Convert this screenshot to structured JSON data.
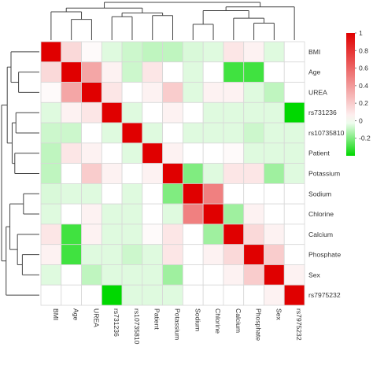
{
  "chart_data": {
    "type": "heatmap",
    "title": "",
    "variables": [
      "BMI",
      "Age",
      "UREA",
      "rs731236",
      "rs10735810",
      "Patient",
      "Potassium",
      "Sodium",
      "Chlorine",
      "Calcium",
      "Phosphate",
      "Sex",
      "rs7975232"
    ],
    "matrix": [
      [
        1.0,
        0.15,
        0.02,
        -0.05,
        -0.08,
        -0.1,
        -0.1,
        -0.06,
        -0.05,
        0.1,
        0.05,
        -0.05,
        0.0
      ],
      [
        0.15,
        1.0,
        0.35,
        0.05,
        -0.08,
        0.1,
        0.0,
        -0.05,
        0.0,
        -0.3,
        -0.3,
        0.0,
        0.0
      ],
      [
        0.02,
        0.35,
        1.0,
        0.1,
        0.0,
        0.05,
        0.2,
        -0.05,
        0.05,
        0.05,
        -0.05,
        -0.1,
        0.0
      ],
      [
        -0.05,
        0.05,
        0.1,
        1.0,
        -0.05,
        0.0,
        0.05,
        0.0,
        -0.05,
        -0.05,
        -0.05,
        -0.05,
        -0.4
      ],
      [
        -0.08,
        -0.08,
        0.0,
        -0.05,
        1.0,
        -0.05,
        0.0,
        -0.05,
        -0.05,
        -0.05,
        -0.08,
        -0.05,
        -0.05
      ],
      [
        -0.1,
        0.1,
        0.05,
        0.0,
        -0.05,
        1.0,
        0.05,
        0.0,
        0.0,
        0.02,
        -0.05,
        -0.05,
        -0.05
      ],
      [
        -0.1,
        0.0,
        0.2,
        0.05,
        0.0,
        0.05,
        1.0,
        -0.2,
        -0.05,
        0.1,
        0.1,
        -0.15,
        -0.05
      ],
      [
        -0.06,
        -0.05,
        -0.05,
        0.0,
        -0.05,
        0.0,
        -0.2,
        1.0,
        0.5,
        0.0,
        0.0,
        0.0,
        0.0
      ],
      [
        -0.05,
        0.0,
        0.05,
        -0.05,
        -0.05,
        0.0,
        -0.05,
        0.5,
        1.0,
        -0.15,
        0.05,
        0.0,
        0.0
      ],
      [
        0.1,
        -0.3,
        0.05,
        -0.05,
        -0.05,
        0.02,
        0.1,
        0.0,
        -0.15,
        1.0,
        0.15,
        0.05,
        0.0
      ],
      [
        0.05,
        -0.3,
        -0.05,
        -0.05,
        -0.08,
        -0.05,
        0.1,
        0.0,
        0.05,
        0.15,
        1.0,
        0.2,
        0.0
      ],
      [
        -0.05,
        0.0,
        -0.1,
        -0.05,
        -0.05,
        -0.05,
        -0.15,
        0.0,
        0.0,
        0.05,
        0.2,
        1.0,
        0.05
      ],
      [
        0.0,
        0.0,
        0.0,
        -0.4,
        -0.05,
        -0.05,
        -0.05,
        0.0,
        0.0,
        0.0,
        0.0,
        0.05,
        1.0
      ]
    ],
    "color_scale": {
      "min": -0.4,
      "max": 1,
      "low_color": "#00d800",
      "mid_color": "#ffffff",
      "high_color": "#e00000"
    },
    "legend": {
      "position": "right",
      "tick_labels": [
        "1",
        "0.8",
        "0.6",
        "0.4",
        "0.2",
        "0",
        "-0.2"
      ],
      "tick_values": [
        1,
        0.8,
        0.6,
        0.4,
        0.2,
        0,
        -0.2
      ]
    },
    "dendrograms": {
      "top": true,
      "left": true,
      "merges": [
        [
          "Sodium",
          "Chlorine",
          0.42
        ],
        [
          "Phosphate",
          "Sex",
          0.45
        ],
        [
          "Calcium",
          "Phosphate+Sex",
          0.58
        ],
        [
          "rs731236",
          "rs10735810",
          0.62
        ],
        [
          "Patient",
          "Potassium",
          0.65
        ],
        [
          "rs731236+rs10735810",
          "Patient+Potassium",
          0.72
        ],
        [
          "Age",
          "UREA",
          0.55
        ],
        [
          "BMI",
          "Age+UREA",
          0.75
        ],
        [
          "Sodium+Chlorine",
          "Calcium+Phosphate+Sex",
          0.78
        ],
        [
          "BMI+Age+UREA",
          "rs731236+rs10735810+Patient+Potassium",
          0.85
        ],
        [
          "rs7975232",
          "Sodium+Chlorine+Calcium+Phosphate+Sex",
          0.88
        ],
        [
          "BMI+Age+UREA+rs731236+rs10735810+Patient+Potassium",
          "rs7975232+Sodium+Chlorine+Calcium+Phosphate+Sex",
          1.0
        ]
      ]
    }
  }
}
